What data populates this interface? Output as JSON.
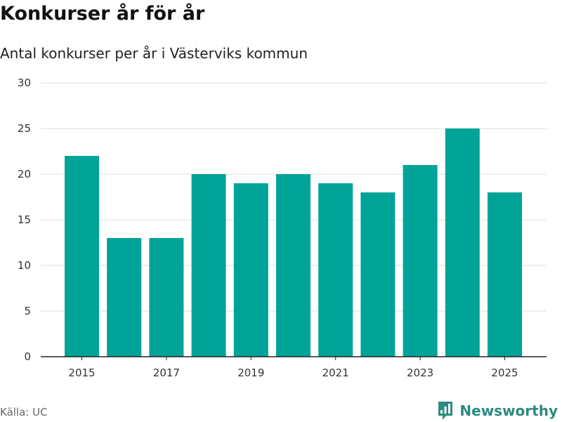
{
  "colors": {
    "bar": "#00a398",
    "grid": "#dddddd",
    "axis": "#222222",
    "brand": "#2c8b80"
  },
  "brand": {
    "name": "Newsworthy",
    "icon": "newsworthy-logo-icon"
  },
  "source": "Källa: UC",
  "chart_data": {
    "type": "bar",
    "title": "Konkurser år för år",
    "subtitle": "Antal konkurser per år i Västerviks kommun",
    "xlabel": "",
    "ylabel": "",
    "categories": [
      "2015",
      "2016",
      "2017",
      "2018",
      "2019",
      "2020",
      "2021",
      "2022",
      "2023",
      "2024",
      "2025"
    ],
    "values": [
      22,
      13,
      13,
      20,
      19,
      20,
      19,
      18,
      21,
      25,
      18
    ],
    "x_tick_labels": [
      "2015",
      "2017",
      "2019",
      "2021",
      "2023",
      "2025"
    ],
    "y_ticks": [
      0,
      5,
      10,
      15,
      20,
      25,
      30
    ],
    "ylim": [
      0,
      30
    ],
    "grid": true,
    "legend": "none"
  }
}
